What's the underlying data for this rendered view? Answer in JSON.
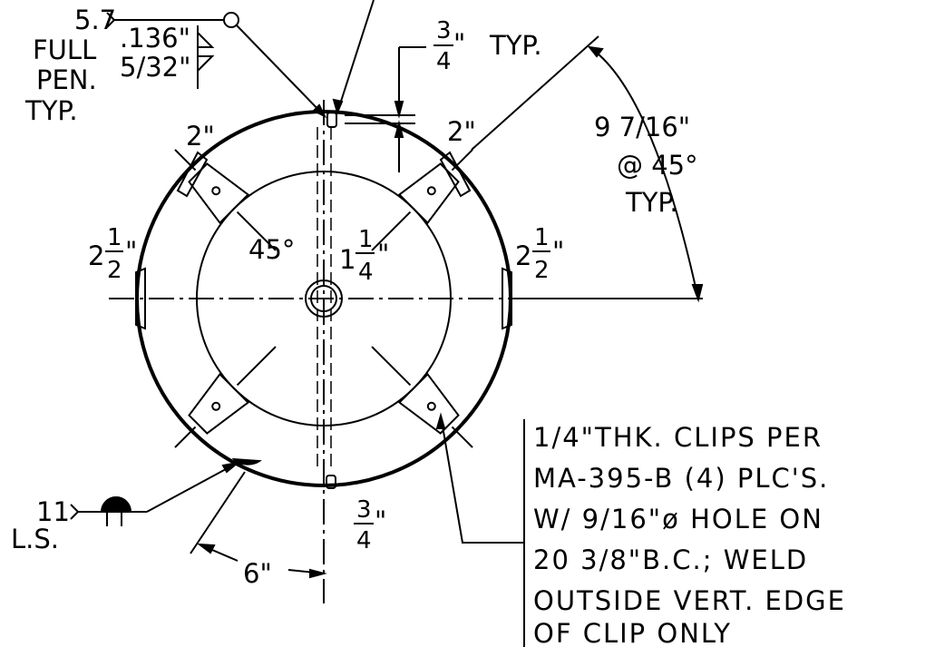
{
  "weld_top": {
    "size": "5.7",
    "notes": [
      "FULL",
      "PEN.",
      "TYP."
    ],
    "dims": [
      ".136\"",
      "5/32\""
    ]
  },
  "dim_top_right": {
    "num": "3",
    "den": "4",
    "unit": "\"",
    "suffix": "TYP."
  },
  "lug_left_top": "2\"",
  "lug_right_top": "2\"",
  "spacing": [
    "9 7/16\"",
    "@ 45°",
    "TYP."
  ],
  "lug_left": {
    "whole": "2",
    "num": "1",
    "den": "2",
    "unit": "\""
  },
  "lug_right": {
    "whole": "2",
    "num": "1",
    "den": "2",
    "unit": "\""
  },
  "angle": "45°",
  "hole": {
    "whole": "1",
    "num": "1",
    "den": "4",
    "unit": "\""
  },
  "note": [
    "1/4\"THK. CLIPS PER",
    "MA-395-B (4) PLC'S.",
    "W/ 9/16\"ø HOLE ON",
    "20 3/8\"B.C.; WELD",
    "OUTSIDE VERT. EDGE",
    "OF CLIP ONLY"
  ],
  "weld_bottom": {
    "size": "11",
    "type": "L.S."
  },
  "dim_bottom_left": "6\"",
  "dim_bottom": {
    "num": "3",
    "den": "4",
    "unit": "\""
  }
}
